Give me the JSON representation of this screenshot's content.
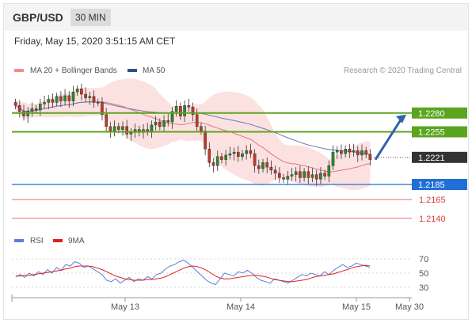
{
  "header": {
    "pair": "GBP/USD",
    "timeframe": "30 MIN"
  },
  "timestamp": "Friday, May 15, 2020 3:51:15 AM CET",
  "legend": {
    "ma20": "MA 20 + Bollinger Bands",
    "ma50": "MA 50",
    "credit": "Research © 2020 Trading Central"
  },
  "rsi_legend": {
    "rsi": "RSI",
    "ma9": "9MA"
  },
  "colors": {
    "resistance": "#5aa51f",
    "pivot": "#1f6fd6",
    "support": "#e03b3b",
    "band": "#f9c9c9",
    "up": "#2a8a2a",
    "down": "#c0392b",
    "ma50": "#6a7bb0",
    "ma20": "#e07a7a",
    "current": "#333333"
  },
  "chart_data": [
    {
      "type": "candlestick",
      "title": "GBP/USD 30 MIN",
      "y_range": [
        1.2125,
        1.2325
      ],
      "levels": [
        {
          "kind": "resistance",
          "value": 1.228,
          "label": "1.2280"
        },
        {
          "kind": "resistance",
          "value": 1.2255,
          "label": "1.2255"
        },
        {
          "kind": "current",
          "value": 1.2221,
          "label": "1.2221"
        },
        {
          "kind": "pivot",
          "value": 1.2185,
          "label": "1.2185"
        },
        {
          "kind": "support",
          "value": 1.2165,
          "label": "1.2165"
        },
        {
          "kind": "support",
          "value": 1.214,
          "label": "1.2140"
        }
      ],
      "forecast_arrow": {
        "from": 1.2218,
        "to": 1.228,
        "direction": "up"
      },
      "close_series": [
        1.229,
        1.2282,
        1.2276,
        1.2282,
        1.2286,
        1.2284,
        1.2292,
        1.2294,
        1.2298,
        1.2294,
        1.2302,
        1.2296,
        1.2303,
        1.2296,
        1.2308,
        1.2312,
        1.2305,
        1.23,
        1.2302,
        1.2294,
        1.2294,
        1.2278,
        1.2262,
        1.2256,
        1.2262,
        1.2258,
        1.2262,
        1.2252,
        1.2254,
        1.2258,
        1.2254,
        1.2258,
        1.2256,
        1.2264,
        1.2268,
        1.2262,
        1.227,
        1.2268,
        1.2282,
        1.2289,
        1.2276,
        1.229,
        1.2288,
        1.2278,
        1.2262,
        1.2256,
        1.2232,
        1.2214,
        1.221,
        1.2222,
        1.2218,
        1.2224,
        1.2226,
        1.2228,
        1.2222,
        1.2226,
        1.223,
        1.2226,
        1.221,
        1.2206,
        1.2214,
        1.2208,
        1.2204,
        1.22,
        1.2194,
        1.2192,
        1.2196,
        1.2198,
        1.2202,
        1.2194,
        1.2202,
        1.2194,
        1.2198,
        1.2192,
        1.22,
        1.2196,
        1.221,
        1.2228,
        1.223,
        1.2226,
        1.2232,
        1.2228,
        1.223,
        1.2224,
        1.223,
        1.2225,
        1.2218
      ]
    },
    {
      "type": "line",
      "title": "RSI",
      "y_range": [
        20,
        80
      ],
      "y_ticks": [
        70,
        50,
        30
      ],
      "x_labels": [
        "May 13",
        "May 14",
        "May 15",
        "May 30"
      ],
      "series": [
        {
          "name": "RSI",
          "values": [
            45,
            48,
            44,
            50,
            46,
            52,
            48,
            55,
            50,
            58,
            54,
            62,
            60,
            66,
            64,
            58,
            60,
            56,
            52,
            48,
            40,
            38,
            42,
            36,
            40,
            44,
            38,
            42,
            40,
            45,
            42,
            48,
            50,
            56,
            60,
            62,
            66,
            68,
            64,
            58,
            52,
            46,
            40,
            36,
            34,
            42,
            50,
            48,
            46,
            52,
            50,
            54,
            50,
            44,
            40,
            38,
            36,
            42,
            40,
            38,
            36,
            40,
            44,
            48,
            46,
            50,
            48,
            46,
            52,
            48,
            54,
            58,
            62,
            58,
            60,
            64,
            62,
            60,
            58
          ]
        },
        {
          "name": "9MA",
          "values": [
            46,
            46,
            47,
            47,
            48,
            49,
            50,
            51,
            52,
            53,
            54,
            56,
            57,
            59,
            60,
            60,
            60,
            59,
            57,
            55,
            52,
            49,
            46,
            44,
            42,
            41,
            40,
            40,
            40,
            41,
            41,
            42,
            43,
            45,
            48,
            51,
            54,
            57,
            59,
            60,
            59,
            57,
            54,
            50,
            46,
            43,
            42,
            42,
            43,
            44,
            45,
            46,
            47,
            47,
            46,
            45,
            43,
            41,
            40,
            39,
            38,
            38,
            39,
            40,
            41,
            43,
            45,
            46,
            47,
            48,
            49,
            51,
            53,
            55,
            57,
            59,
            60,
            61,
            60
          ]
        }
      ]
    }
  ]
}
